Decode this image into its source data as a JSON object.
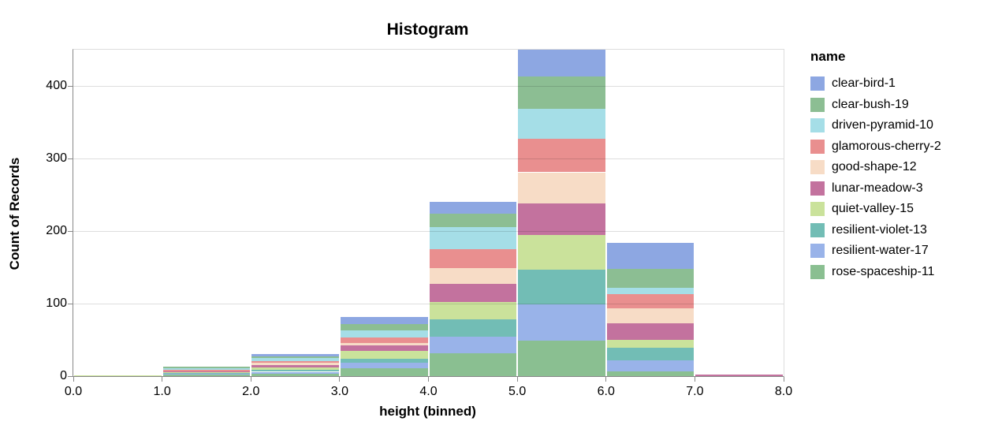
{
  "title": "Histogram",
  "legend": {
    "title": "name",
    "items": [
      {
        "label": "clear-bird-1",
        "color": "#8DA7E2"
      },
      {
        "label": "clear-bush-19",
        "color": "#8CBE93"
      },
      {
        "label": "driven-pyramid-10",
        "color": "#A5DEE7"
      },
      {
        "label": "glamorous-cherry-2",
        "color": "#E98F8F"
      },
      {
        "label": "good-shape-12",
        "color": "#F7DCC6"
      },
      {
        "label": "lunar-meadow-3",
        "color": "#C3729E"
      },
      {
        "label": "quiet-valley-15",
        "color": "#CAE29B"
      },
      {
        "label": "resilient-violet-13",
        "color": "#72BDB5"
      },
      {
        "label": "resilient-water-17",
        "color": "#99B3E9"
      },
      {
        "label": "rose-spaceship-11",
        "color": "#8ABF91"
      }
    ]
  },
  "chart_data": {
    "type": "bar",
    "stacked": true,
    "stack_note": "legend-first series renders at top of each stack; last series at bottom",
    "title": "Histogram",
    "xlabel": "height (binned)",
    "ylabel": "Count of Records",
    "xlim": [
      0,
      8
    ],
    "ylim": [
      0,
      450
    ],
    "bin_width": 1,
    "x_bins": [
      "0-1",
      "1-2",
      "2-3",
      "3-4",
      "4-5",
      "5-6",
      "6-7",
      "7-8"
    ],
    "x_ticks": [
      "0.0",
      "1.0",
      "2.0",
      "3.0",
      "4.0",
      "5.0",
      "6.0",
      "7.0",
      "8.0"
    ],
    "y_ticks": [
      0,
      100,
      200,
      300,
      400
    ],
    "grid": "horizontal",
    "legend_position": "right",
    "bin_totals": [
      1,
      13,
      30,
      82,
      240,
      450,
      184,
      2
    ],
    "series": [
      {
        "name": "clear-bird-1",
        "color": "#8DA7E2",
        "values": [
          0,
          0,
          3,
          10,
          16,
          37,
          36,
          0
        ]
      },
      {
        "name": "clear-bush-19",
        "color": "#8CBE93",
        "values": [
          0,
          2,
          2,
          9,
          19,
          44,
          26,
          0
        ]
      },
      {
        "name": "driven-pyramid-10",
        "color": "#A5DEE7",
        "values": [
          0,
          2,
          4,
          10,
          30,
          42,
          9,
          0
        ]
      },
      {
        "name": "glamorous-cherry-2",
        "color": "#E98F8F",
        "values": [
          0,
          2,
          3,
          7,
          26,
          46,
          19,
          0
        ]
      },
      {
        "name": "good-shape-12",
        "color": "#F7DCC6",
        "values": [
          0,
          0,
          3,
          4,
          22,
          43,
          21,
          0
        ]
      },
      {
        "name": "lunar-meadow-3",
        "color": "#C3729E",
        "values": [
          0,
          1,
          3,
          7,
          25,
          43,
          23,
          2
        ]
      },
      {
        "name": "quiet-valley-15",
        "color": "#CAE29B",
        "values": [
          1,
          1,
          3,
          11,
          24,
          48,
          11,
          0
        ]
      },
      {
        "name": "resilient-violet-13",
        "color": "#72BDB5",
        "values": [
          0,
          2,
          3,
          6,
          24,
          48,
          17,
          0
        ]
      },
      {
        "name": "resilient-water-17",
        "color": "#99B3E9",
        "values": [
          0,
          1,
          3,
          7,
          23,
          50,
          16,
          0
        ]
      },
      {
        "name": "rose-spaceship-11",
        "color": "#8ABF91",
        "values": [
          0,
          2,
          3,
          11,
          31,
          49,
          6,
          0
        ]
      }
    ]
  }
}
